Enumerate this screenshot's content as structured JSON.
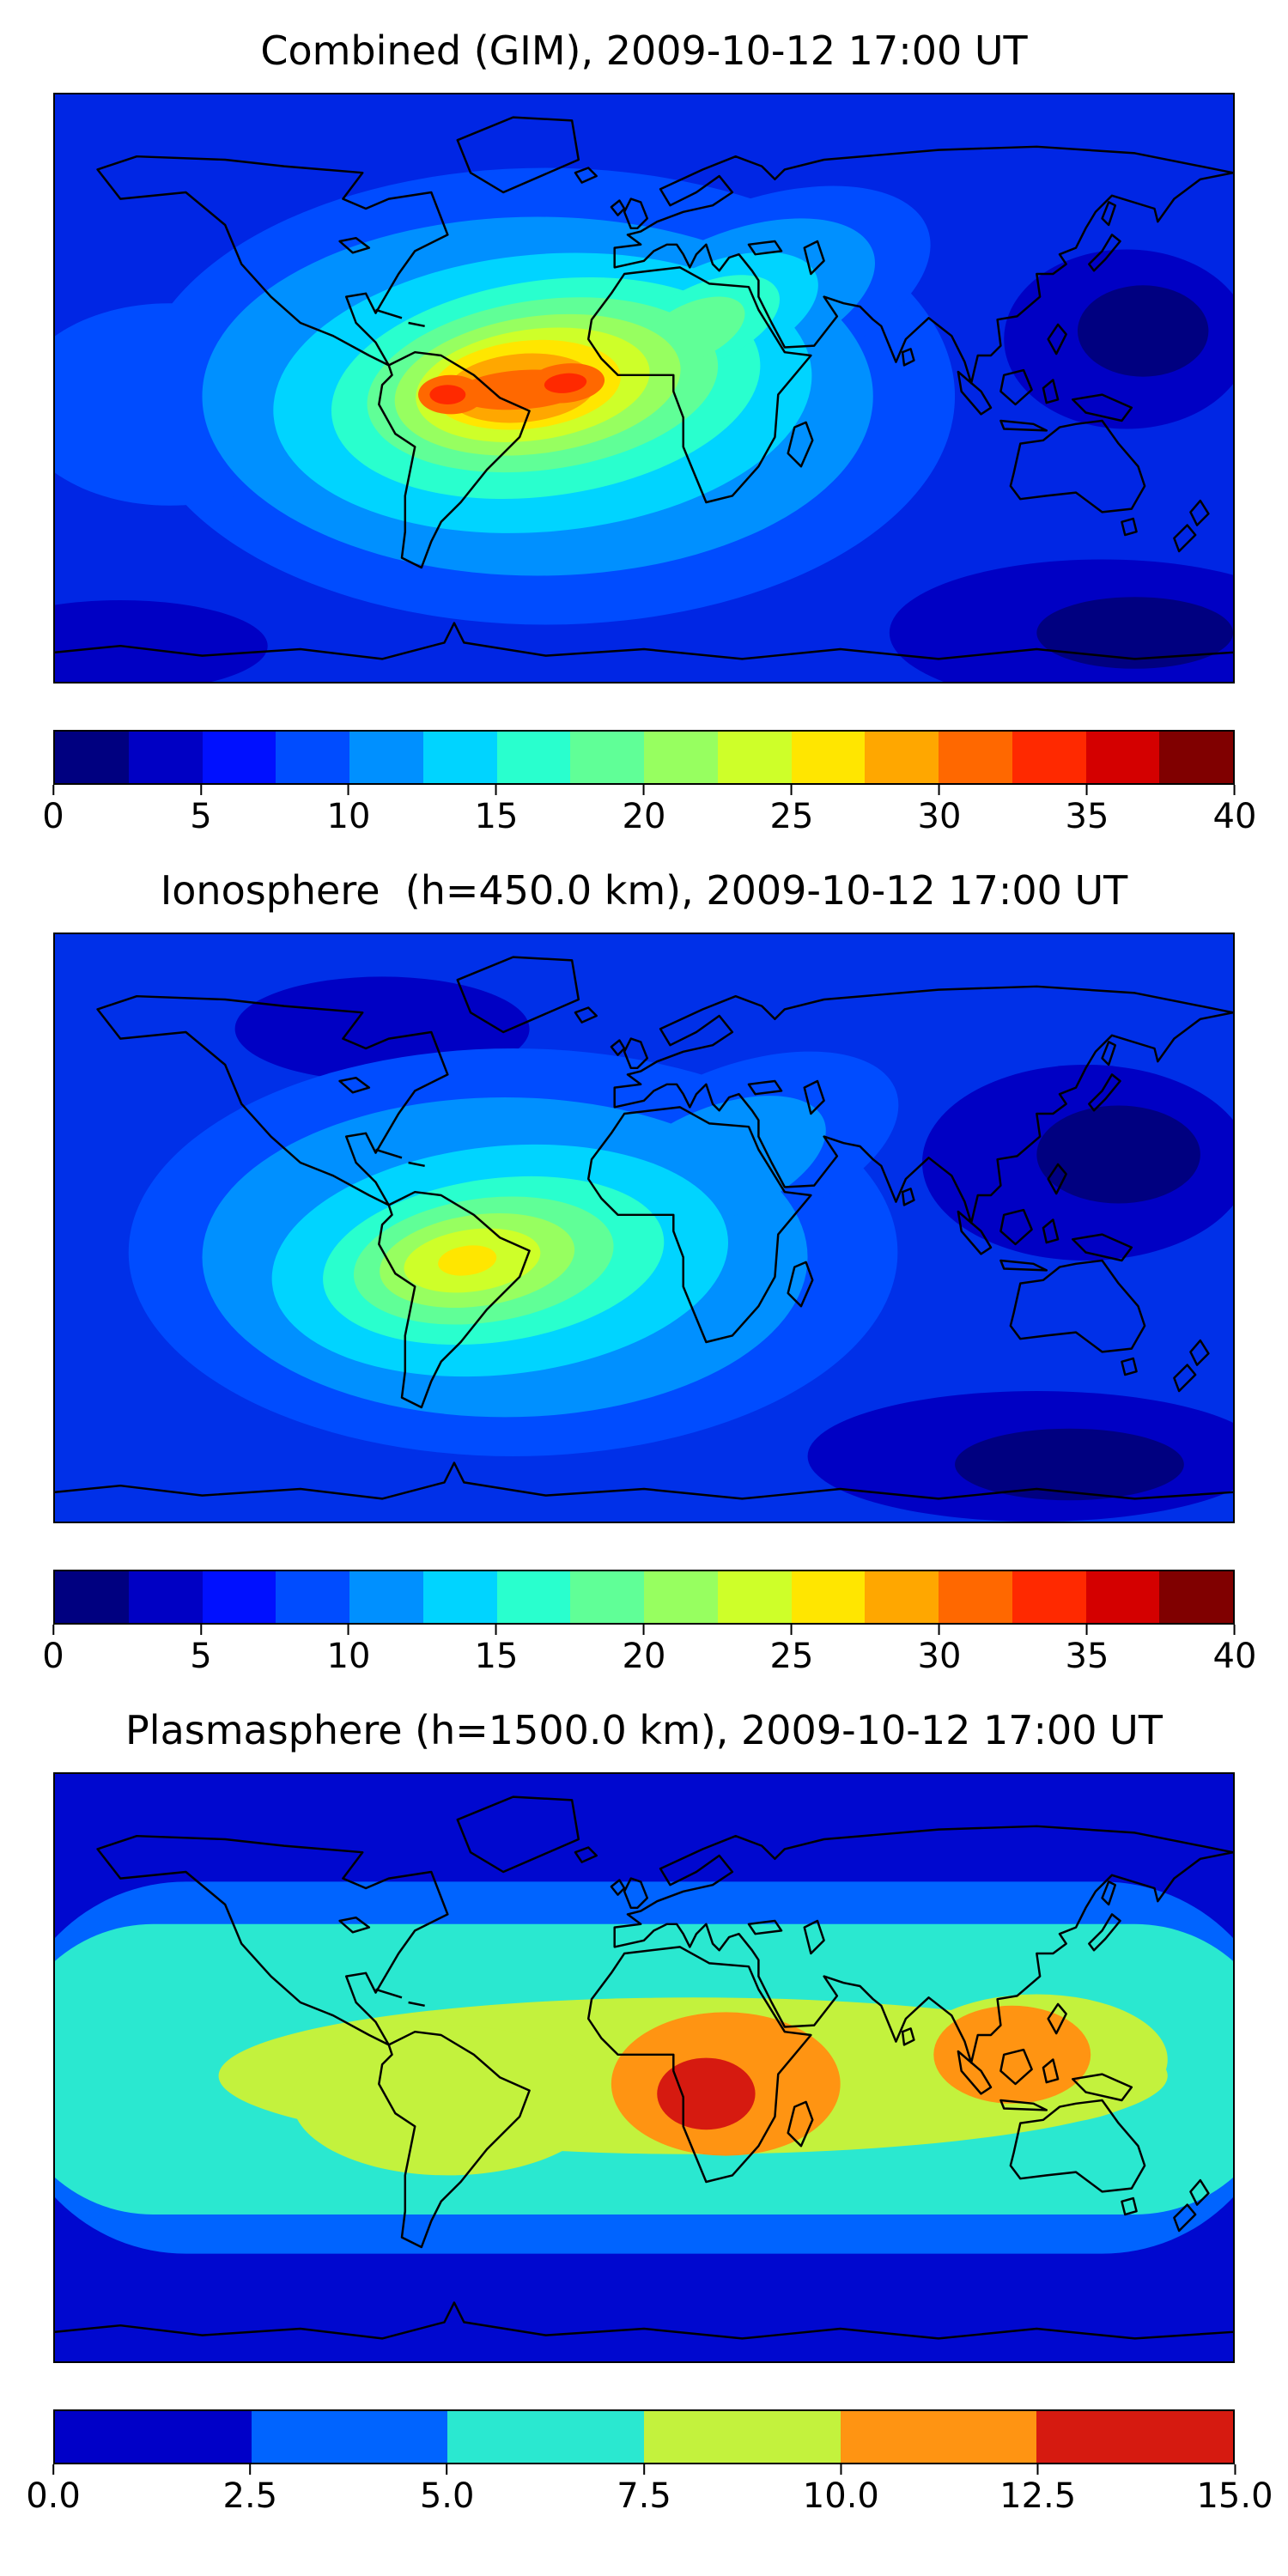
{
  "figure": {
    "background": "#ffffff",
    "description": "Three stacked global total electron content (TEC) filled-contour maps with horizontal jet colorbars"
  },
  "chart_data": [
    {
      "type": "heatmap",
      "variant": "filled-contour-world-map",
      "title": "Combined (GIM), 2009-10-12 17:00 UT",
      "projection": "equirectangular",
      "lon_range": [
        -180,
        180
      ],
      "lat_range": [
        -90,
        90
      ],
      "colormap": "jet",
      "value_range": [
        0,
        40
      ],
      "contour_step": 2.5,
      "legend_position": "horizontal colorbar below map",
      "colorbar_ticks": [
        "0",
        "5",
        "10",
        "15",
        "20",
        "25",
        "30",
        "35",
        "40"
      ],
      "colorbar_colors": [
        "#000080",
        "#0000c4",
        "#0010ff",
        "#004cff",
        "#0090ff",
        "#00d4ff",
        "#29ffce",
        "#60ff97",
        "#97ff60",
        "#ceff29",
        "#ffe600",
        "#ffa700",
        "#ff6800",
        "#ff2900",
        "#d40000",
        "#800000"
      ],
      "features": [
        {
          "feature": "peak",
          "value_approx": 35,
          "location": "two orange-red cores over equatorial South America (lon -70) and tropical Atlantic / west Africa (lon -30), lat -5 to 10"
        },
        {
          "feature": "enhanced band",
          "value_approx": "15-25",
          "location": "tropics from eastern Pacific across Atlantic into Africa and southern Europe"
        },
        {
          "feature": "minimum",
          "value_approx": "0-5",
          "location": "high-latitude western Pacific and southern Indian Ocean"
        }
      ]
    },
    {
      "type": "heatmap",
      "variant": "filled-contour-world-map",
      "title": "Ionosphere  (h=450.0 km), 2009-10-12 17:00 UT",
      "projection": "equirectangular",
      "lon_range": [
        -180,
        180
      ],
      "lat_range": [
        -90,
        90
      ],
      "colormap": "jet",
      "value_range": [
        0,
        40
      ],
      "contour_step": 2.5,
      "legend_position": "horizontal colorbar below map",
      "colorbar_ticks": [
        "0",
        "5",
        "10",
        "15",
        "20",
        "25",
        "30",
        "35",
        "40"
      ],
      "colorbar_colors": [
        "#000080",
        "#0000c4",
        "#0010ff",
        "#004cff",
        "#0090ff",
        "#00d4ff",
        "#29ffce",
        "#60ff97",
        "#97ff60",
        "#ceff29",
        "#ffe600",
        "#ffa700",
        "#ff6800",
        "#ff2900",
        "#d40000",
        "#800000"
      ],
      "features": [
        {
          "feature": "peak",
          "value_approx": 22,
          "location": "yellow-green maximum over equatorial South America (lon -60, lat -8)"
        },
        {
          "feature": "enhanced region",
          "value_approx": "10-18",
          "location": "tropical Atlantic extending northeast toward west Africa"
        },
        {
          "feature": "minimum",
          "value_approx": "0-5",
          "location": "Asia / western Pacific mid-latitudes and southern Indian Ocean"
        }
      ]
    },
    {
      "type": "heatmap",
      "variant": "filled-contour-world-map",
      "title": "Plasmasphere (h=1500.0 km), 2009-10-12 17:00 UT",
      "projection": "equirectangular",
      "lon_range": [
        -180,
        180
      ],
      "lat_range": [
        -90,
        90
      ],
      "colormap": "jet",
      "value_range": [
        0,
        15
      ],
      "contour_step": 2.5,
      "legend_position": "horizontal colorbar below map",
      "colorbar_ticks": [
        "0.0",
        "2.5",
        "5.0",
        "7.5",
        "10.0",
        "12.5",
        "15.0"
      ],
      "colorbar_colors": [
        "#0000c8",
        "#0064ff",
        "#2ae8d0",
        "#c3f23d",
        "#ff9412",
        "#d61a10"
      ],
      "features": [
        {
          "feature": "peak",
          "value_approx": 14,
          "location": "dark red core over central Africa (lon 20, lat 0)"
        },
        {
          "feature": "secondary maximum",
          "value_approx": 11,
          "location": "orange blob over Southeast Asia (lon 90-130, lat 0-20)"
        },
        {
          "feature": "equatorial band",
          "value_approx": "5-10",
          "location": "yellow-green / turquoise band spanning most longitudes between lat -35 and +35"
        },
        {
          "feature": "minimum",
          "value_approx": "0-2.5",
          "location": "deep blue poleward of about ±55 latitude"
        }
      ]
    }
  ]
}
